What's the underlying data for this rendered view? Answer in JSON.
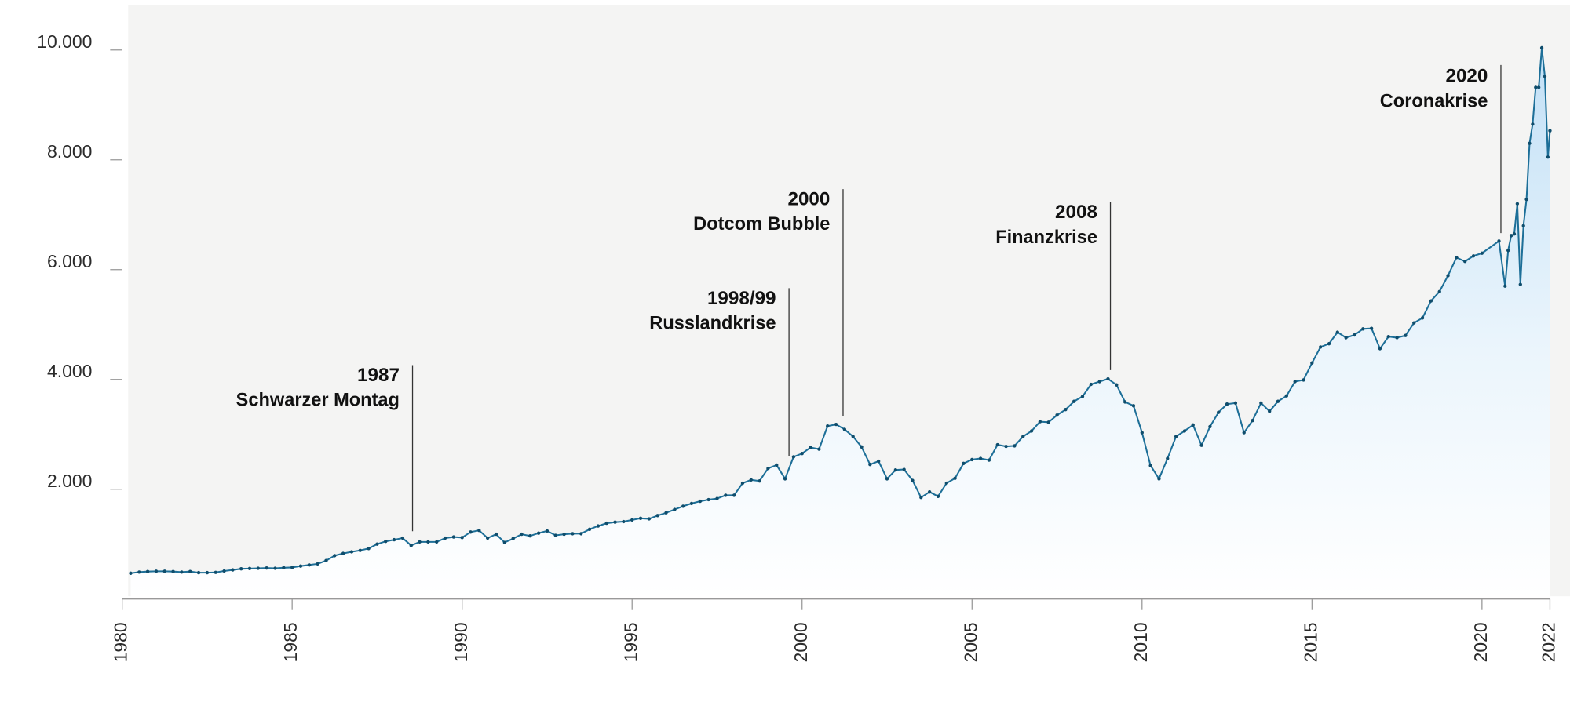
{
  "chart_data": {
    "type": "line",
    "x": [
      1980.25,
      1980.5,
      1980.75,
      1981,
      1981.25,
      1981.5,
      1981.75,
      1982,
      1982.25,
      1982.5,
      1982.75,
      1983,
      1983.25,
      1983.5,
      1983.75,
      1984,
      1984.25,
      1984.5,
      1984.75,
      1985,
      1985.25,
      1985.5,
      1985.75,
      1986,
      1986.25,
      1986.5,
      1986.75,
      1987,
      1987.25,
      1987.5,
      1987.75,
      1988,
      1988.25,
      1988.5,
      1988.75,
      1989,
      1989.25,
      1989.5,
      1989.75,
      1990,
      1990.25,
      1990.5,
      1990.75,
      1991,
      1991.25,
      1991.5,
      1991.75,
      1992,
      1992.25,
      1992.5,
      1992.75,
      1993,
      1993.25,
      1993.5,
      1993.75,
      1994,
      1994.25,
      1994.5,
      1994.75,
      1995,
      1995.25,
      1995.5,
      1995.75,
      1996,
      1996.25,
      1996.5,
      1996.75,
      1997,
      1997.25,
      1997.5,
      1997.75,
      1998,
      1998.25,
      1998.5,
      1998.75,
      1999,
      1999.25,
      1999.5,
      1999.75,
      2000,
      2000.25,
      2000.5,
      2000.75,
      2001,
      2001.25,
      2001.5,
      2001.75,
      2002,
      2002.25,
      2002.5,
      2002.75,
      2003,
      2003.25,
      2003.5,
      2003.75,
      2004,
      2004.25,
      2004.5,
      2004.75,
      2005,
      2005.25,
      2005.5,
      2005.75,
      2006,
      2006.25,
      2006.5,
      2006.75,
      2007,
      2007.25,
      2007.5,
      2007.75,
      2008,
      2008.25,
      2008.5,
      2008.75,
      2009,
      2009.25,
      2009.5,
      2009.75,
      2010,
      2010.25,
      2010.5,
      2010.75,
      2011,
      2011.25,
      2011.5,
      2011.75,
      2012,
      2012.25,
      2012.5,
      2012.75,
      2013,
      2013.25,
      2013.5,
      2013.75,
      2014,
      2014.25,
      2014.5,
      2014.75,
      2015,
      2015.25,
      2015.5,
      2015.75,
      2016,
      2016.25,
      2016.5,
      2016.75,
      2017,
      2017.25,
      2017.5,
      2017.75,
      2018,
      2018.25,
      2018.5,
      2018.75,
      2019,
      2019.25,
      2019.5,
      2019.75,
      2020,
      2020.5,
      2020.68,
      2020.77,
      2020.86,
      2020.95,
      2021.04,
      2021.13,
      2021.22,
      2021.31,
      2021.4,
      2021.49,
      2021.58,
      2021.67,
      2021.76,
      2021.85,
      2021.94,
      2022
    ],
    "values": [
      470,
      490,
      500,
      505,
      505,
      500,
      490,
      500,
      480,
      480,
      485,
      510,
      530,
      550,
      555,
      560,
      565,
      560,
      570,
      575,
      600,
      620,
      640,
      700,
      790,
      830,
      860,
      885,
      920,
      1000,
      1050,
      1080,
      1110,
      975,
      1040,
      1040,
      1040,
      1110,
      1130,
      1120,
      1220,
      1250,
      1110,
      1180,
      1030,
      1100,
      1180,
      1150,
      1200,
      1240,
      1160,
      1180,
      1190,
      1190,
      1270,
      1330,
      1380,
      1400,
      1410,
      1440,
      1470,
      1460,
      1520,
      1570,
      1630,
      1690,
      1740,
      1780,
      1810,
      1830,
      1890,
      1890,
      2110,
      2170,
      2150,
      2380,
      2440,
      2190,
      2590,
      2650,
      2760,
      2730,
      3150,
      3180,
      3090,
      2960,
      2770,
      2450,
      2510,
      2190,
      2350,
      2360,
      2160,
      1850,
      1950,
      1870,
      2110,
      2200,
      2470,
      2540,
      2560,
      2530,
      2810,
      2780,
      2790,
      2960,
      3060,
      3230,
      3220,
      3350,
      3450,
      3600,
      3690,
      3910,
      3960,
      4010,
      3900,
      3590,
      3520,
      3030,
      2430,
      2190,
      2560,
      2960,
      3060,
      3170,
      2800,
      3140,
      3400,
      3550,
      3570,
      3030,
      3250,
      3570,
      3420,
      3600,
      3700,
      3960,
      3990,
      4300,
      4590,
      4650,
      4860,
      4760,
      4810,
      4920,
      4930,
      4560,
      4780,
      4760,
      4800,
      5030,
      5120,
      5430,
      5600,
      5890,
      6220,
      6150,
      6250,
      6300,
      6520,
      5700,
      6350,
      6620,
      6650,
      7200,
      5730,
      6800,
      7280,
      8300,
      8650,
      9320,
      9320,
      10040,
      9520,
      8050,
      8530
    ],
    "color": "#1d6f98",
    "xlim": [
      1980,
      2022
    ],
    "xticks": [
      1980,
      1985,
      1990,
      1995,
      2000,
      2005,
      2010,
      2015,
      2020,
      2022
    ],
    "ylim": [
      0,
      10820
    ],
    "yticks": [
      {
        "value": 2000,
        "label": "2.000"
      },
      {
        "value": 4000,
        "label": "4.000"
      },
      {
        "value": 6000,
        "label": "6.000"
      },
      {
        "value": 8000,
        "label": "8.000"
      },
      {
        "value": 10000,
        "label": "10.000"
      }
    ],
    "grid": false,
    "annotations": [
      {
        "year": "1987",
        "label": "Schwarzer Montag"
      },
      {
        "year": "1998/99",
        "label": "Russlandkrise"
      },
      {
        "year": "2000",
        "label": "Dotcom Bubble"
      },
      {
        "year": "2008",
        "label": "Finanzkrise"
      },
      {
        "year": "2020",
        "label": "Coronakrise"
      }
    ]
  }
}
